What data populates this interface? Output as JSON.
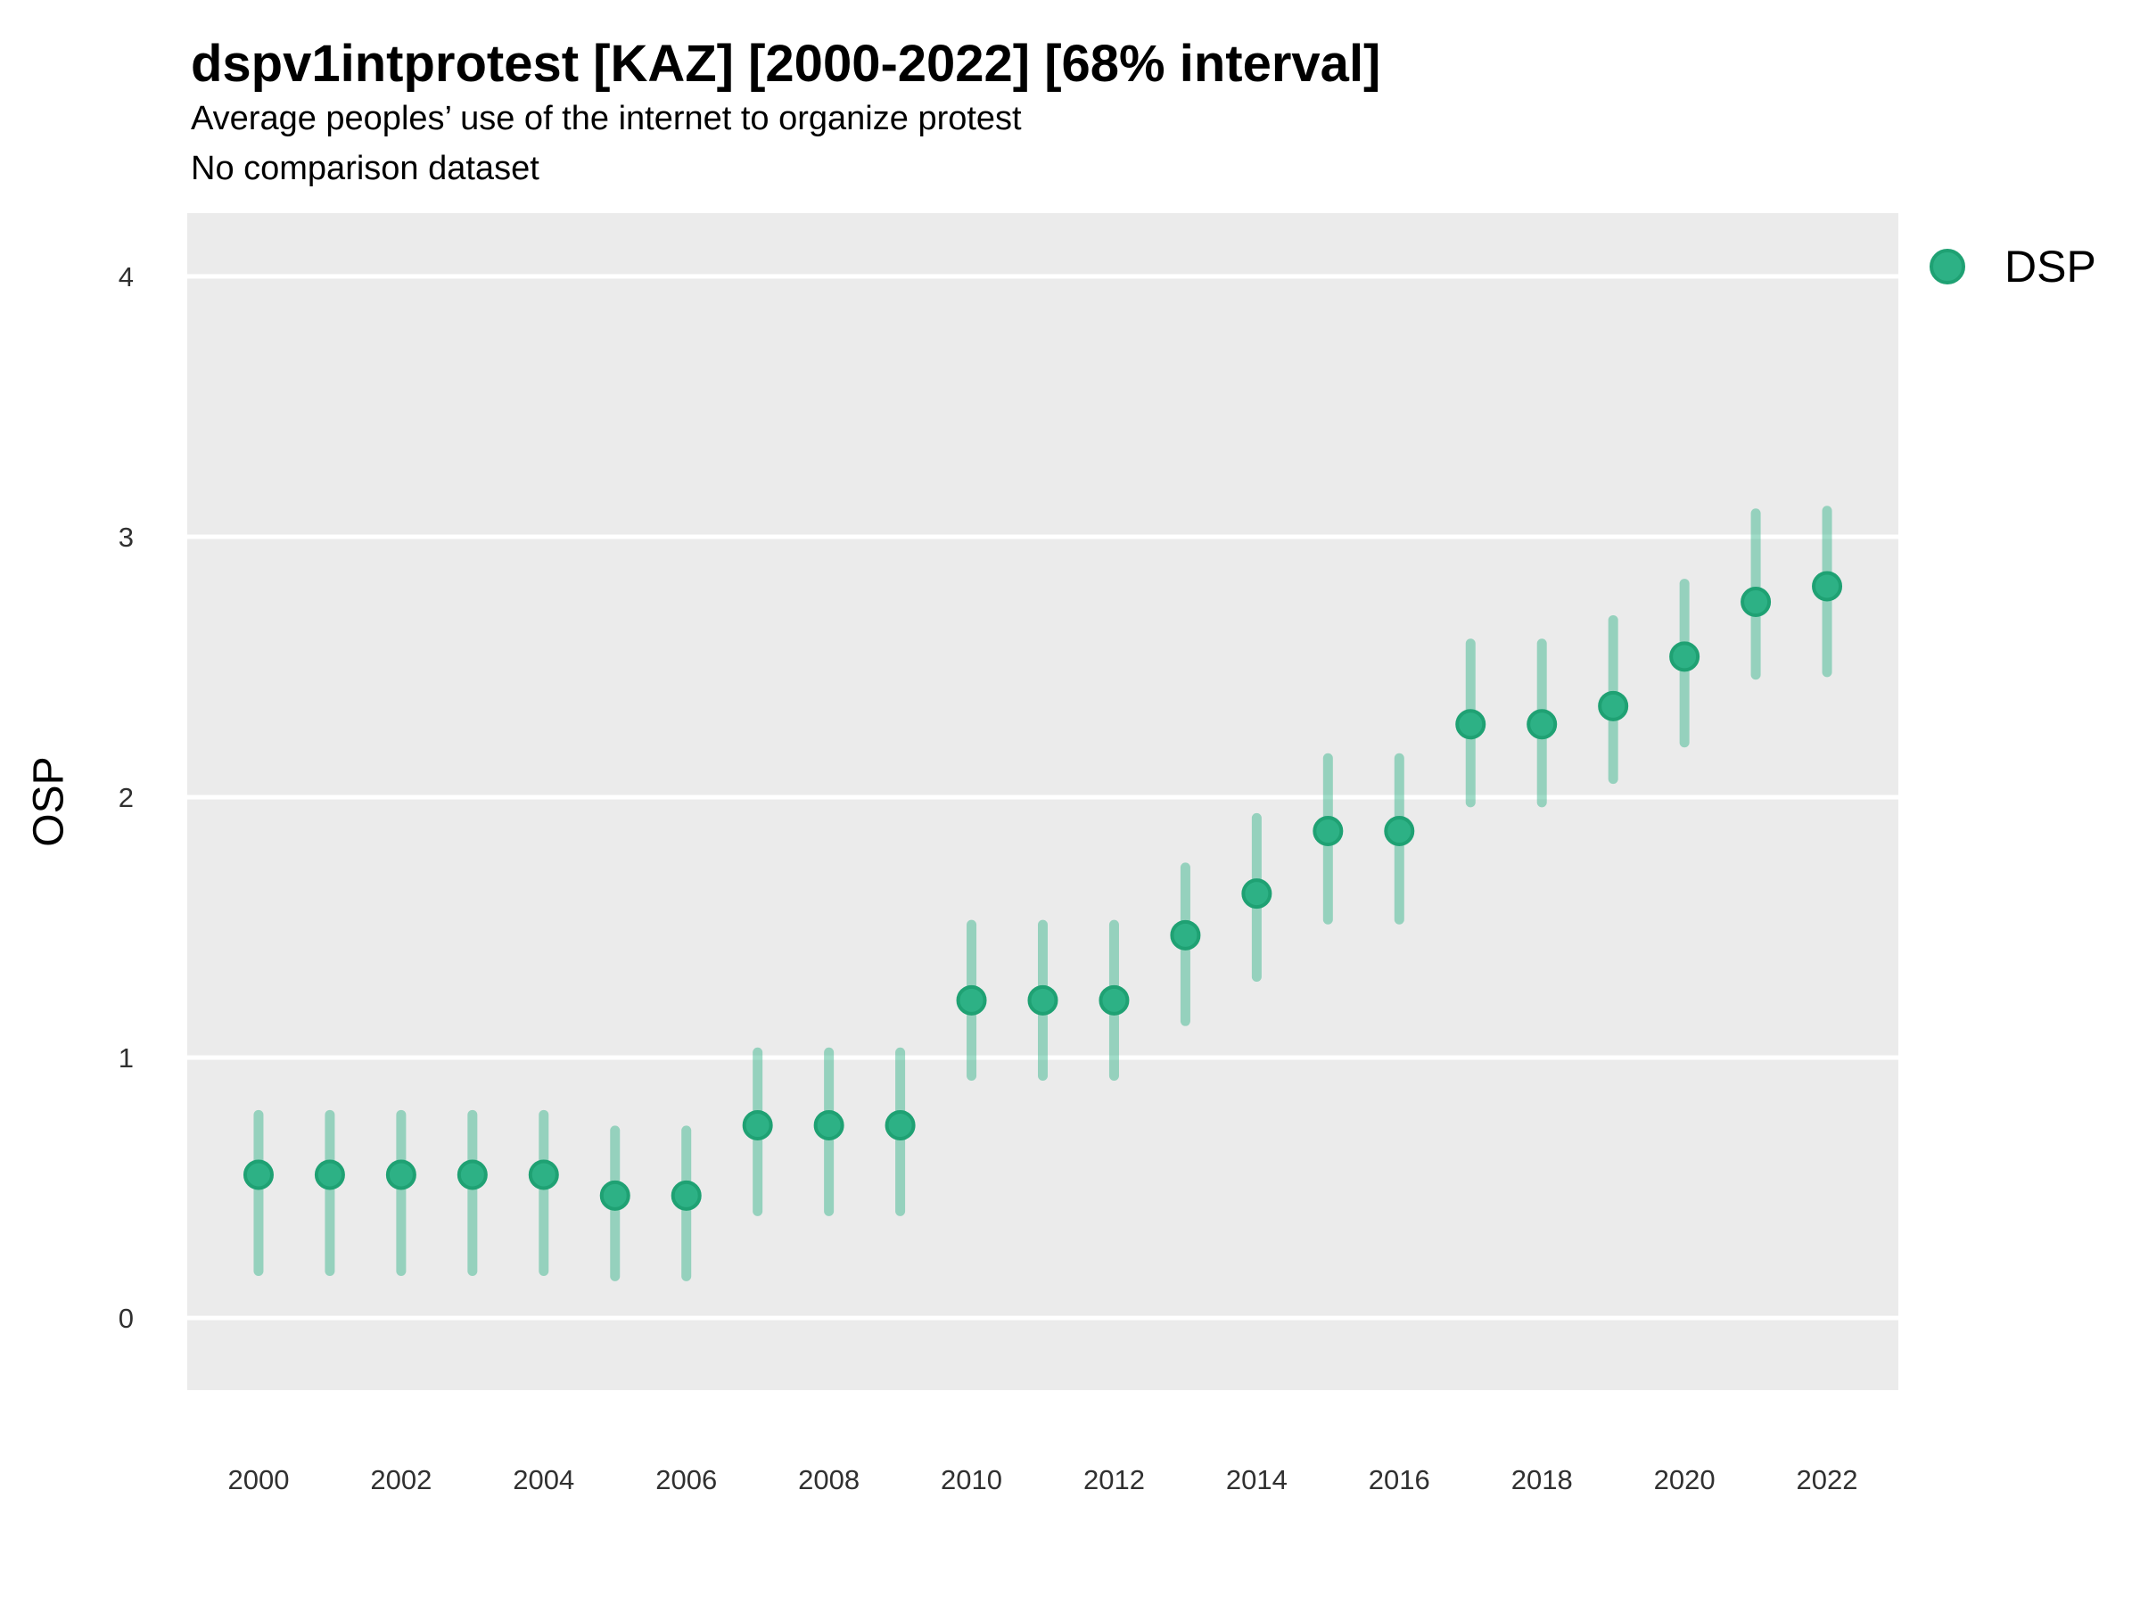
{
  "header": {
    "title": "dspv1intprotest [KAZ] [2000-2022] [68% interval]",
    "subtitle": "Average peoples’ use of the internet to organize protest",
    "note": "No comparison dataset"
  },
  "axes": {
    "y_title": "OSP",
    "y_tick_labels": [
      "0",
      "1",
      "2",
      "3",
      "4"
    ],
    "x_tick_labels": [
      "2000",
      "2002",
      "2004",
      "2006",
      "2008",
      "2010",
      "2012",
      "2014",
      "2016",
      "2018",
      "2020",
      "2022"
    ]
  },
  "legend": {
    "items": [
      {
        "label": "DSP",
        "color": "#2db185"
      }
    ]
  },
  "chart_data": {
    "type": "scatter",
    "subtype": "pointrange",
    "title": "dspv1intprotest [KAZ] [2000-2022] [68% interval]",
    "subtitle": "Average peoples’ use of the internet to organize protest",
    "note": "No comparison dataset",
    "interval": "68%",
    "xlabel": "",
    "ylabel": "OSP",
    "x": [
      2000,
      2001,
      2002,
      2003,
      2004,
      2005,
      2006,
      2007,
      2008,
      2009,
      2010,
      2011,
      2012,
      2013,
      2014,
      2015,
      2016,
      2017,
      2018,
      2019,
      2020,
      2021,
      2022
    ],
    "series": [
      {
        "name": "DSP",
        "estimate": [
          0.55,
          0.55,
          0.55,
          0.55,
          0.55,
          0.47,
          0.47,
          0.74,
          0.74,
          0.74,
          1.22,
          1.22,
          1.22,
          1.47,
          1.63,
          1.87,
          1.87,
          2.28,
          2.28,
          2.35,
          2.54,
          2.75,
          2.81
        ],
        "lower_68": [
          0.18,
          0.18,
          0.18,
          0.18,
          0.18,
          0.16,
          0.16,
          0.41,
          0.41,
          0.41,
          0.93,
          0.93,
          0.93,
          1.14,
          1.31,
          1.53,
          1.53,
          1.98,
          1.98,
          2.07,
          2.21,
          2.47,
          2.48
        ],
        "upper_68": [
          0.78,
          0.78,
          0.78,
          0.78,
          0.78,
          0.72,
          0.72,
          1.02,
          1.02,
          1.02,
          1.51,
          1.51,
          1.51,
          1.73,
          1.92,
          2.15,
          2.15,
          2.59,
          2.59,
          2.68,
          2.82,
          3.09,
          3.1
        ]
      }
    ],
    "xlim": [
      1999,
      2023
    ],
    "ylim": [
      -0.277,
      4.243
    ],
    "y_ticks": [
      0,
      1,
      2,
      3,
      4
    ],
    "x_ticks": [
      2000,
      2002,
      2004,
      2006,
      2008,
      2010,
      2012,
      2014,
      2016,
      2018,
      2020,
      2022
    ],
    "grid": "horizontal-major-only",
    "legend_position": "right",
    "colors": {
      "point_fill": "#2db185",
      "point_stroke": "#1fa173",
      "interval_line": "rgba(45, 177, 133, 0.45)",
      "panel_bg": "#ebebeb",
      "grid_line": "#ffffff",
      "tick_text": "#303030"
    }
  }
}
